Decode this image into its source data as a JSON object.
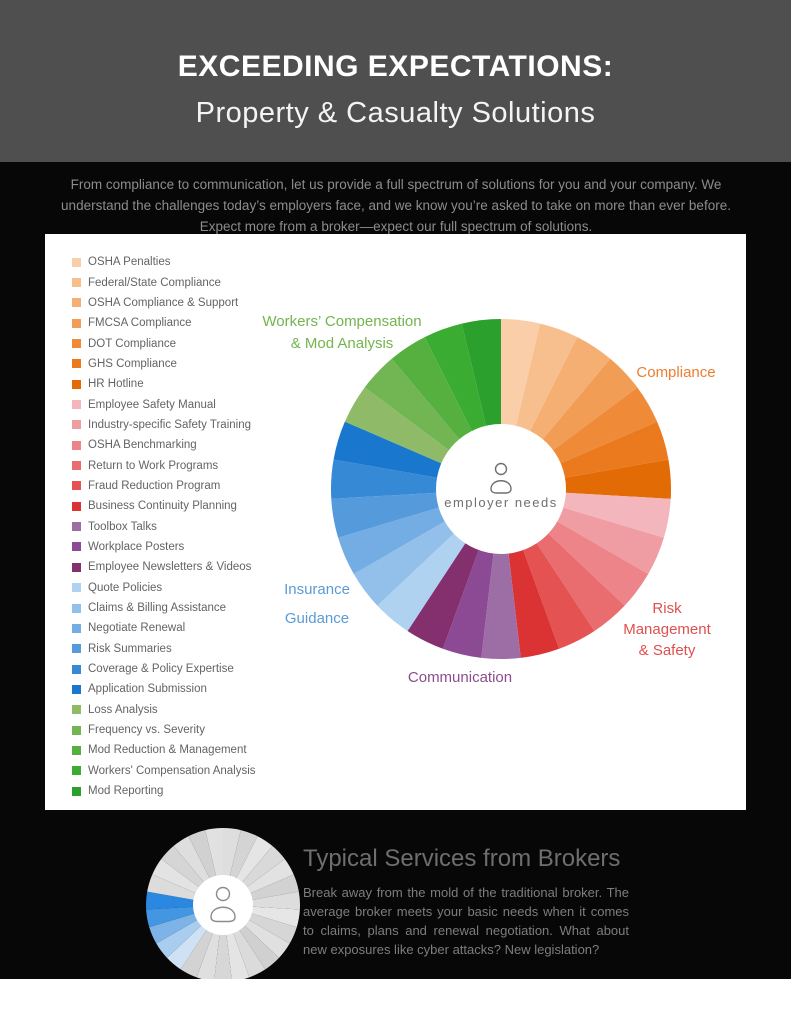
{
  "header": {
    "title_line1": "EXCEEDING EXPECTATIONS:",
    "title_line2": "Property & Casualty Solutions"
  },
  "intro": "From compliance to communication, let us provide a full spectrum of solutions for you and your company. We understand the challenges today’s employers face, and we know you’re asked to take on more than ever before. Expect more from a broker—expect our full spectrum of solutions.",
  "chart_data": [
    {
      "type": "pie",
      "title": "employer needs",
      "center_label": "employer needs",
      "legend_position": "left",
      "slice_value_percent": 3.7,
      "segments": [
        {
          "label": "OSHA Penalties",
          "color": "#F9CEA8",
          "group": "Compliance"
        },
        {
          "label": "Federal/State Compliance",
          "color": "#F7BF8E",
          "group": "Compliance"
        },
        {
          "label": "OSHA Compliance & Support",
          "color": "#F5AF73",
          "group": "Compliance"
        },
        {
          "label": "FMCSA Compliance",
          "color": "#F29D55",
          "group": "Compliance"
        },
        {
          "label": "DOT Compliance",
          "color": "#EF8B38",
          "group": "Compliance"
        },
        {
          "label": "GHS Compliance",
          "color": "#EB7A1E",
          "group": "Compliance"
        },
        {
          "label": "HR Hotline",
          "color": "#E26B06",
          "group": "Compliance"
        },
        {
          "label": "Employee Safety Manual",
          "color": "#F3B6BD",
          "group": "Risk Management & Safety"
        },
        {
          "label": "Industry-specific Safety Training",
          "color": "#F09CA3",
          "group": "Risk Management & Safety"
        },
        {
          "label": "OSHA Benchmarking",
          "color": "#ED8489",
          "group": "Risk Management & Safety"
        },
        {
          "label": "Return to Work Programs",
          "color": "#E96C6E",
          "group": "Risk Management & Safety"
        },
        {
          "label": "Fraud Reduction Program",
          "color": "#E45252",
          "group": "Risk Management & Safety"
        },
        {
          "label": "Business Continuity Planning",
          "color": "#DB3333",
          "group": "Risk Management & Safety"
        },
        {
          "label": "Toolbox Talks",
          "color": "#9D6EA6",
          "group": "Communication"
        },
        {
          "label": "Workplace Posters",
          "color": "#8C4A94",
          "group": "Communication"
        },
        {
          "label": "Employee Newsletters & Videos",
          "color": "#84306F",
          "group": "Communication"
        },
        {
          "label": "Quote Policies",
          "color": "#AED2F0",
          "group": "Insurance Guidance"
        },
        {
          "label": "Claims & Billing Assistance",
          "color": "#92C0EA",
          "group": "Insurance Guidance"
        },
        {
          "label": "Negotiate Renewal",
          "color": "#74ADE3",
          "group": "Insurance Guidance"
        },
        {
          "label": "Risk Summaries",
          "color": "#559BDC",
          "group": "Insurance Guidance"
        },
        {
          "label": "Coverage & Policy Expertise",
          "color": "#3689D5",
          "group": "Insurance Guidance"
        },
        {
          "label": "Application Submission",
          "color": "#1978CE",
          "group": "Insurance Guidance"
        },
        {
          "label": "Loss Analysis",
          "color": "#8FBB69",
          "group": "Workers’ Compensation & Mod Analysis"
        },
        {
          "label": "Frequency vs. Severity",
          "color": "#72B654",
          "group": "Workers’ Compensation & Mod Analysis"
        },
        {
          "label": "Mod Reduction & Management",
          "color": "#55B03F",
          "group": "Workers’ Compensation & Mod Analysis"
        },
        {
          "label": "Workers' Compensation Analysis",
          "color": "#3BAC32",
          "group": "Workers’ Compensation & Mod Analysis"
        },
        {
          "label": "Mod Reporting",
          "color": "#2CA02C",
          "group": "Workers’ Compensation & Mod Analysis"
        }
      ],
      "group_labels": [
        {
          "text": "Workers’ Compensation\n& Mod Analysis",
          "color": "#74B44E"
        },
        {
          "text": "Compliance",
          "color": "#ED7D31"
        },
        {
          "text": "Risk\nManagement\n& Safety",
          "color": "#E04F4F"
        },
        {
          "text": "Communication",
          "color": "#8D4A8D"
        },
        {
          "text": "Insurance\nGuidance",
          "color": "#5B9BD5"
        }
      ]
    },
    {
      "type": "pie",
      "title": "Typical Services from Brokers",
      "highlighted_group": "Insurance Guidance",
      "slice_value_percent": 3.7,
      "segment_colors": [
        "#DEDEDE",
        "#D4D4D4",
        "#E5E5E5",
        "#D9D9D9",
        "#E2E2E2",
        "#D2D2D2",
        "#DDDDDD",
        "#E6E6E6",
        "#D6D6D6",
        "#E0E0E0",
        "#D0D0D0",
        "#DBDBDB",
        "#E4E4E4",
        "#D7D7D7",
        "#DFDFDF",
        "#D3D3D3",
        "#CFE2F5",
        "#A9CDEF",
        "#7DB3E7",
        "#4397E2",
        "#2A88E0",
        "#DCDCDC",
        "#E3E3E3",
        "#D5D5D5",
        "#DEDEDE",
        "#D1D1D1",
        "#E1E1E1"
      ]
    }
  ],
  "broker": {
    "title": "Typical Services from Brokers",
    "body": "Break away from the mold of the traditional broker. The average broker meets your basic needs when it comes to claims, plans and renewal negotiation. What about new exposures like cyber attacks? New legislation?"
  },
  "colors": {
    "header_bg": "#4F4F4F",
    "page_bg": "#070707",
    "card_bg": "#FFFFFF",
    "center_text": "#6F6F6F"
  }
}
